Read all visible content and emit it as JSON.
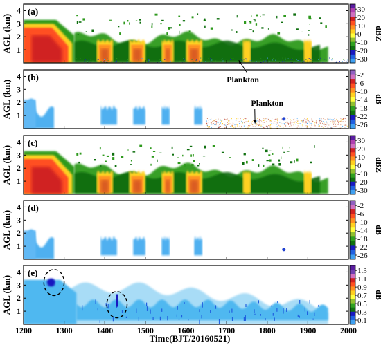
{
  "chart_data": {
    "type": "heatmap",
    "xlabel": "Time(BJT/20160521)",
    "xlim": [
      1200,
      2000
    ],
    "xticks": [
      1200,
      1300,
      1400,
      1500,
      1600,
      1700,
      1800,
      1900,
      2000
    ],
    "ylabel": "AGL (km)",
    "ylim": [
      0,
      4.5
    ],
    "yticks": [
      1,
      2,
      3,
      4
    ],
    "panels": [
      {
        "id": "a",
        "label": "(a)",
        "unit": "dBZ",
        "cb_ticks": [
          "30",
          "20",
          "10",
          "0",
          "-10",
          "-20",
          "-30"
        ],
        "cb_colors": [
          "#5a1ea0",
          "#b040b0",
          "#d070c0",
          "#d02020",
          "#ff5020",
          "#ff9020",
          "#ffd020",
          "#ffff40",
          "#90c030",
          "#30a020",
          "#107010",
          "#1818c0",
          "#2060e0",
          "#40a0f0"
        ],
        "cloud": {
          "convective": {
            "x": [
              1200,
              1325
            ],
            "top_km": 3.4
          },
          "stratiform": {
            "x": [
              1325,
              1950
            ],
            "top_km": 2.4
          },
          "dense_echo_bands": [
            [
              1380,
              1420
            ],
            [
              1460,
              1500
            ],
            [
              1540,
              1570
            ],
            [
              1600,
              1640
            ],
            [
              1740,
              1760
            ],
            [
              1890,
              1910
            ]
          ]
        },
        "annotation": "Plankton",
        "annotation_target": {
          "x": 1730,
          "y_km": 0.2
        }
      },
      {
        "id": "b",
        "label": "(b)",
        "unit": "dB",
        "cb_ticks": [
          "-2",
          "-6",
          "-10",
          "-14",
          "-18",
          "-22",
          "-26"
        ],
        "cb_colors": [
          "#9060c0",
          "#d070c0",
          "#d02020",
          "#ff5020",
          "#ff9020",
          "#ffd020",
          "#ffff40",
          "#90c030",
          "#30a020",
          "#107010",
          "#1818c0",
          "#2060e0",
          "#40a0f0"
        ],
        "cloud": {
          "blue_regions": [
            [
              1200,
              1270
            ],
            [
              1390,
              1430
            ],
            [
              1470,
              1500
            ],
            [
              1540,
              1560
            ],
            [
              1620,
              1640
            ]
          ]
        },
        "annotation": "Plankton",
        "annotation_target": {
          "x": 1770,
          "y_km": 0.4
        },
        "noise_region": {
          "x": [
            1650,
            2000
          ],
          "y_km": [
            0,
            0.8
          ]
        }
      },
      {
        "id": "c",
        "label": "(c)",
        "unit": "dBZ",
        "cb_ticks": [
          "30",
          "20",
          "10",
          "0",
          "-10",
          "-20",
          "-30"
        ],
        "cb_colors": [
          "#5a1ea0",
          "#b040b0",
          "#d070c0",
          "#d02020",
          "#ff5020",
          "#ff9020",
          "#ffd020",
          "#ffff40",
          "#90c030",
          "#30a020",
          "#107010",
          "#1818c0",
          "#2060e0",
          "#40a0f0"
        ],
        "cloud": {
          "convective": {
            "x": [
              1200,
              1325
            ],
            "top_km": 3.4
          },
          "stratiform": {
            "x": [
              1325,
              1950
            ],
            "top_km": 2.4
          }
        }
      },
      {
        "id": "d",
        "label": "(d)",
        "unit": "dB",
        "cb_ticks": [
          "-2",
          "-6",
          "-10",
          "-14",
          "-18",
          "-22",
          "-26"
        ],
        "cb_colors": [
          "#9060c0",
          "#d070c0",
          "#d02020",
          "#ff5020",
          "#ff9020",
          "#ffd020",
          "#ffff40",
          "#90c030",
          "#30a020",
          "#107010",
          "#1818c0",
          "#2060e0",
          "#40a0f0"
        ],
        "cloud": {
          "blue_regions": [
            [
              1200,
              1270
            ],
            [
              1390,
              1430
            ],
            [
              1470,
              1500
            ],
            [
              1540,
              1560
            ],
            [
              1620,
              1640
            ]
          ]
        }
      },
      {
        "id": "e",
        "label": "(e)",
        "unit": "dB",
        "cb_ticks": [
          "1.3",
          "1.1",
          "0.9",
          "0.7",
          "0.5",
          "0.3",
          "0.1"
        ],
        "cb_colors": [
          "#5a1ea0",
          "#7040b0",
          "#d070c0",
          "#d02020",
          "#ff5020",
          "#ff9020",
          "#ffd020",
          "#ffff40",
          "#90c030",
          "#30a020",
          "#107010",
          "#1818c0",
          "#2060e0",
          "#40a0f0"
        ],
        "cloud": {
          "fill_x": [
            1200,
            1950
          ],
          "top_km": 3.0
        },
        "circles": [
          {
            "x": 1275,
            "y_km": 3.2,
            "rx": 25,
            "ry_km": 1.0
          },
          {
            "x": 1430,
            "y_km": 1.5,
            "rx": 25,
            "ry_km": 1.0
          }
        ]
      }
    ]
  }
}
